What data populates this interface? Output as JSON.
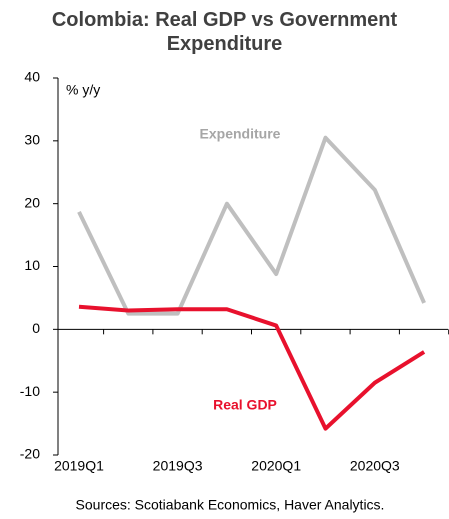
{
  "chart_data": {
    "type": "line",
    "title": "Colombia: Real GDP vs Government Expenditure",
    "y_label": "% y/y",
    "source": "Sources: Scotiabank Economics, Haver Analytics.",
    "categories": [
      "2019Q1",
      null,
      "2019Q3",
      null,
      "2020Q1",
      null,
      "2020Q3",
      null
    ],
    "series": [
      {
        "name": "Expenditure",
        "color": "#bfbfbf",
        "values": [
          18.7,
          2.5,
          2.5,
          20,
          8.8,
          30.5,
          22.2,
          4.2
        ]
      },
      {
        "name": "Real GDP",
        "color": "#e8112d",
        "values": [
          3.6,
          3.0,
          3.2,
          3.2,
          0.6,
          -15.8,
          -8.5,
          -3.6
        ]
      }
    ],
    "ylim": [
      -20,
      40
    ],
    "yticks": [
      -20,
      -10,
      0,
      10,
      20,
      30,
      40
    ]
  }
}
